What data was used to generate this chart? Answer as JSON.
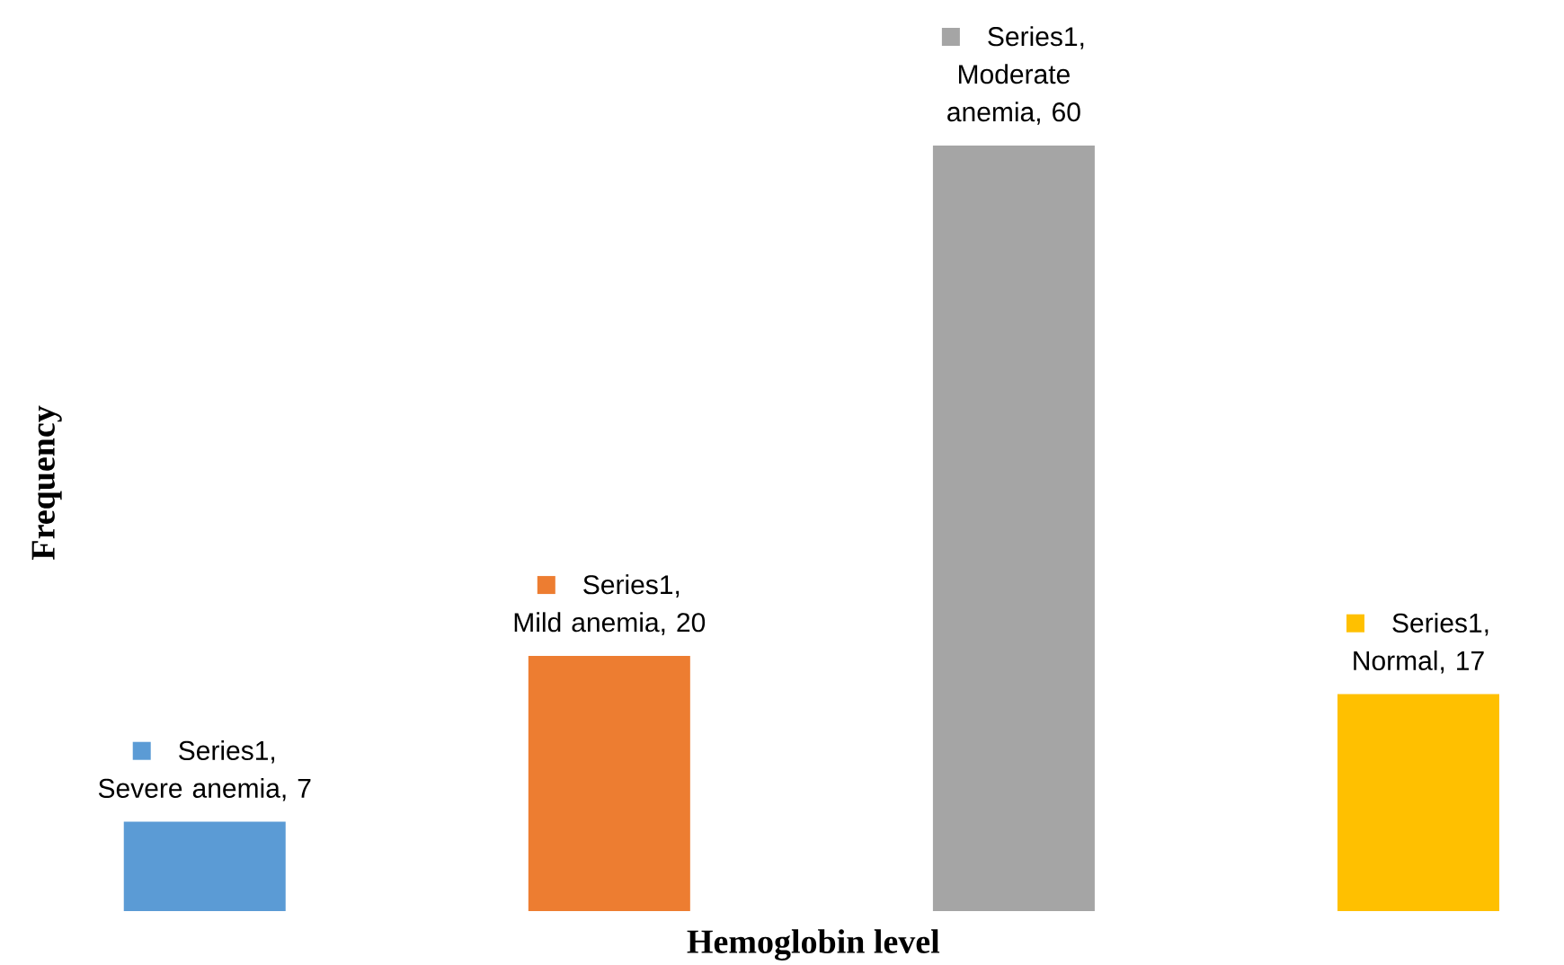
{
  "chart_data": {
    "type": "bar",
    "xlabel": "Hemoglobin level",
    "ylabel": "Frequency",
    "categories": [
      null,
      null,
      null,
      null
    ],
    "values": [
      7,
      20,
      60,
      17
    ],
    "colors": [
      "#5b9bd5",
      "#ed7d31",
      "#a5a5a5",
      "#ffc000"
    ],
    "value_labels": [
      "Series1, Severe anemia, 7",
      "Series1, Mild anemia, 20",
      "Series1, Moderate anemia, 60",
      "Series1, Normal, 17"
    ]
  }
}
